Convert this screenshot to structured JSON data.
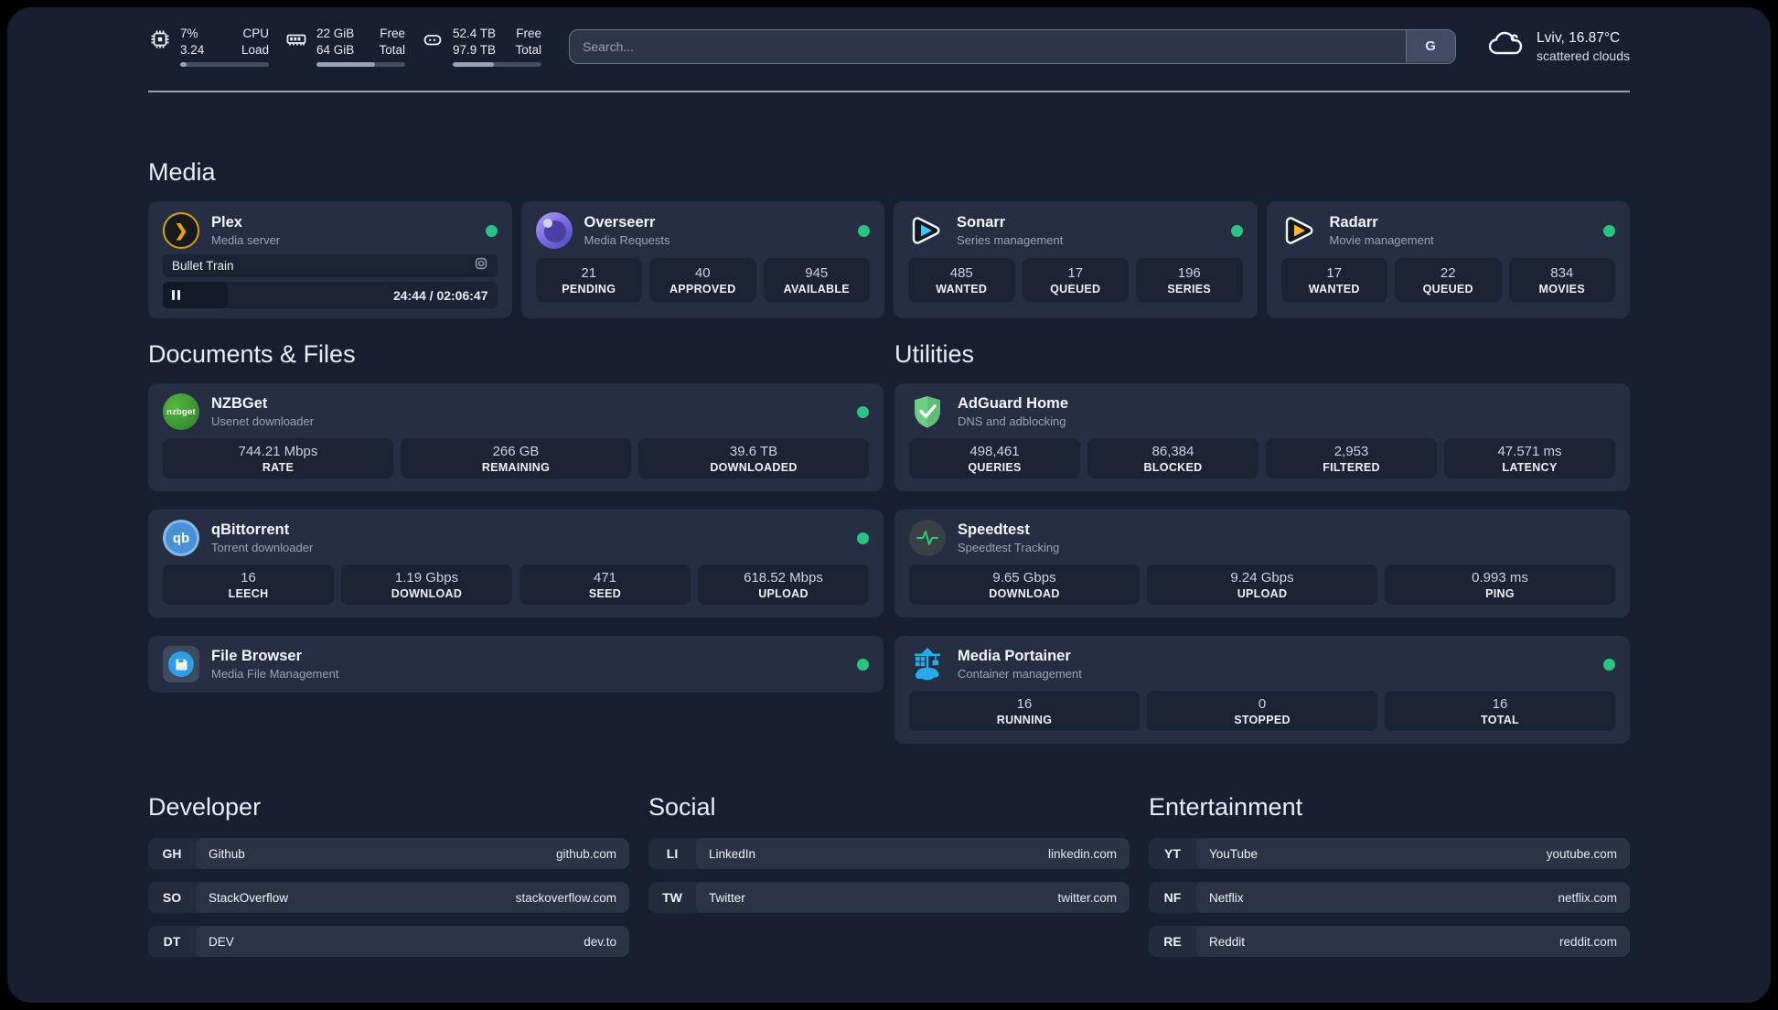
{
  "header": {
    "cpu": {
      "value": "7%",
      "subvalue": "3.24",
      "label": "CPU",
      "sublabel": "Load",
      "progress": "7%"
    },
    "ram": {
      "value": "22 GiB",
      "subvalue": "64 GiB",
      "label": "Free",
      "sublabel": "Total",
      "progress": "66%"
    },
    "disk": {
      "value": "52.4 TB",
      "subvalue": "97.9 TB",
      "label": "Free",
      "sublabel": "Total",
      "progress": "46%"
    },
    "search": {
      "placeholder": "Search...",
      "engine_label": "G"
    },
    "weather": {
      "headline": "Lviv, 16.87°C",
      "condition": "scattered clouds"
    }
  },
  "section_titles": {
    "media": "Media",
    "documents": "Documents & Files",
    "utilities": "Utilities",
    "developer": "Developer",
    "social": "Social",
    "entertainment": "Entertainment"
  },
  "apps": {
    "plex": {
      "name": "Plex",
      "desc": "Media server",
      "now_playing": "Bullet Train",
      "time": "24:44 / 02:06:47",
      "progress": "19.5%"
    },
    "overseerr": {
      "name": "Overseerr",
      "desc": "Media Requests",
      "stats": [
        {
          "value": "21",
          "label": "PENDING"
        },
        {
          "value": "40",
          "label": "APPROVED"
        },
        {
          "value": "945",
          "label": "AVAILABLE"
        }
      ]
    },
    "sonarr": {
      "name": "Sonarr",
      "desc": "Series management",
      "stats": [
        {
          "value": "485",
          "label": "WANTED"
        },
        {
          "value": "17",
          "label": "QUEUED"
        },
        {
          "value": "196",
          "label": "SERIES"
        }
      ]
    },
    "radarr": {
      "name": "Radarr",
      "desc": "Movie management",
      "stats": [
        {
          "value": "17",
          "label": "WANTED"
        },
        {
          "value": "22",
          "label": "QUEUED"
        },
        {
          "value": "834",
          "label": "MOVIES"
        }
      ]
    },
    "nzbget": {
      "name": "NZBGet",
      "desc": "Usenet downloader",
      "icon_text": "nzbget",
      "stats": [
        {
          "value": "744.21 Mbps",
          "label": "RATE"
        },
        {
          "value": "266 GB",
          "label": "REMAINING"
        },
        {
          "value": "39.6 TB",
          "label": "DOWNLOADED"
        }
      ]
    },
    "qbittorrent": {
      "name": "qBittorrent",
      "desc": "Torrent downloader",
      "icon_text": "qb",
      "stats": [
        {
          "value": "16",
          "label": "LEECH"
        },
        {
          "value": "1.19 Gbps",
          "label": "DOWNLOAD"
        },
        {
          "value": "471",
          "label": "SEED"
        },
        {
          "value": "618.52 Mbps",
          "label": "UPLOAD"
        }
      ]
    },
    "filebrowser": {
      "name": "File Browser",
      "desc": "Media File Management"
    },
    "adguard": {
      "name": "AdGuard Home",
      "desc": "DNS and adblocking",
      "stats": [
        {
          "value": "498,461",
          "label": "QUERIES"
        },
        {
          "value": "86,384",
          "label": "BLOCKED"
        },
        {
          "value": "2,953",
          "label": "FILTERED"
        },
        {
          "value": "47.571 ms",
          "label": "LATENCY"
        }
      ]
    },
    "speedtest": {
      "name": "Speedtest",
      "desc": "Speedtest Tracking",
      "stats": [
        {
          "value": "9.65 Gbps",
          "label": "DOWNLOAD"
        },
        {
          "value": "9.24 Gbps",
          "label": "UPLOAD"
        },
        {
          "value": "0.993 ms",
          "label": "PING"
        }
      ]
    },
    "portainer": {
      "name": "Media Portainer",
      "desc": "Container management",
      "stats": [
        {
          "value": "16",
          "label": "RUNNING"
        },
        {
          "value": "0",
          "label": "STOPPED"
        },
        {
          "value": "16",
          "label": "TOTAL"
        }
      ]
    }
  },
  "bookmarks": {
    "developer": [
      {
        "abbr": "GH",
        "name": "Github",
        "url": "github.com"
      },
      {
        "abbr": "SO",
        "name": "StackOverflow",
        "url": "stackoverflow.com"
      },
      {
        "abbr": "DT",
        "name": "DEV",
        "url": "dev.to"
      }
    ],
    "social": [
      {
        "abbr": "LI",
        "name": "LinkedIn",
        "url": "linkedin.com"
      },
      {
        "abbr": "TW",
        "name": "Twitter",
        "url": "twitter.com"
      }
    ],
    "entertainment": [
      {
        "abbr": "YT",
        "name": "YouTube",
        "url": "youtube.com"
      },
      {
        "abbr": "NF",
        "name": "Netflix",
        "url": "netflix.com"
      },
      {
        "abbr": "RE",
        "name": "Reddit",
        "url": "reddit.com"
      }
    ]
  },
  "colors": {
    "status_online": "#2bc284",
    "plex_accent": "#e5a00d",
    "sonarr_accent": "#38c6f4",
    "radarr_accent": "#ffb829",
    "nzbget_accent": "#3f9e35",
    "qbittorrent_accent": "#4a90d9",
    "filebrowser_accent": "#2d9fe8",
    "adguard_accent": "#5fbd75",
    "speedtest_accent": "#2ecc71",
    "portainer_accent": "#29a9eb"
  },
  "icons": [
    "cpu-chip-icon",
    "ram-icon",
    "disk-icon",
    "cloud-icon",
    "search-engine-button",
    "pause-icon",
    "video-camera-icon",
    "status-dot"
  ]
}
